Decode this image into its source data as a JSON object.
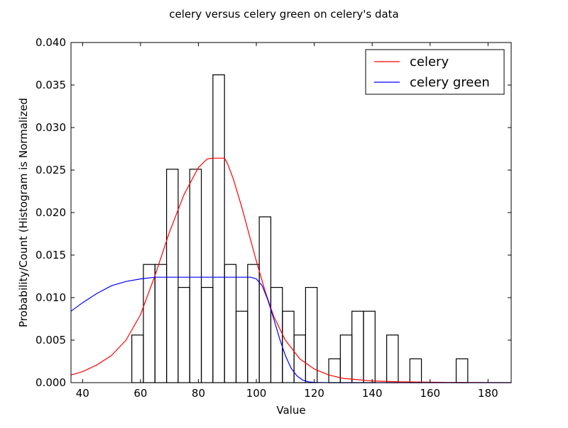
{
  "chart_data": {
    "type": "histogram+line",
    "title": "celery versus celery green on celery's data",
    "xlabel": "Value",
    "ylabel": "Probability/Count (Histogram is Normalized",
    "xlim": [
      36,
      188
    ],
    "ylim": [
      0,
      0.04
    ],
    "x_ticks": [
      "40",
      "60",
      "80",
      "100",
      "120",
      "140",
      "160",
      "180"
    ],
    "y_ticks": [
      "0.000",
      "0.005",
      "0.010",
      "0.015",
      "0.020",
      "0.025",
      "0.030",
      "0.035",
      "0.040"
    ],
    "grid": false,
    "legend_position": "top-right",
    "bin_width": 4,
    "histogram": [
      {
        "x0": 57,
        "value": 0.0056
      },
      {
        "x0": 61,
        "value": 0.0139
      },
      {
        "x0": 65,
        "value": 0.0139
      },
      {
        "x0": 69,
        "value": 0.0251
      },
      {
        "x0": 73,
        "value": 0.0112
      },
      {
        "x0": 77,
        "value": 0.0251
      },
      {
        "x0": 81,
        "value": 0.0112
      },
      {
        "x0": 85,
        "value": 0.0362
      },
      {
        "x0": 89,
        "value": 0.0139
      },
      {
        "x0": 93,
        "value": 0.0084
      },
      {
        "x0": 97,
        "value": 0.0139
      },
      {
        "x0": 101,
        "value": 0.0195
      },
      {
        "x0": 105,
        "value": 0.0112
      },
      {
        "x0": 109,
        "value": 0.0084
      },
      {
        "x0": 113,
        "value": 0.0056
      },
      {
        "x0": 117,
        "value": 0.0112
      },
      {
        "x0": 121,
        "value": 0.0
      },
      {
        "x0": 125,
        "value": 0.0028
      },
      {
        "x0": 129,
        "value": 0.0056
      },
      {
        "x0": 133,
        "value": 0.0084
      },
      {
        "x0": 137,
        "value": 0.0084
      },
      {
        "x0": 141,
        "value": 0.0
      },
      {
        "x0": 145,
        "value": 0.0056
      },
      {
        "x0": 149,
        "value": 0.0
      },
      {
        "x0": 153,
        "value": 0.0028
      },
      {
        "x0": 157,
        "value": 0.0
      },
      {
        "x0": 161,
        "value": 0.0
      },
      {
        "x0": 165,
        "value": 0.0
      },
      {
        "x0": 169,
        "value": 0.0028
      }
    ],
    "series": [
      {
        "name": "celery",
        "color": "#ff0000",
        "x": [
          36,
          40,
          45,
          50,
          55,
          60,
          65,
          70,
          75,
          80,
          83,
          85,
          87,
          89,
          90,
          92,
          95,
          98,
          100,
          103,
          106,
          110,
          115,
          120,
          125,
          130,
          140,
          150,
          160,
          170,
          180,
          188
        ],
        "y": [
          0.0009,
          0.0013,
          0.0021,
          0.0032,
          0.005,
          0.008,
          0.0126,
          0.0177,
          0.0221,
          0.0253,
          0.0263,
          0.0264,
          0.0264,
          0.0264,
          0.0258,
          0.024,
          0.0206,
          0.0168,
          0.0143,
          0.0108,
          0.0078,
          0.005,
          0.0028,
          0.0016,
          0.0009,
          0.0005,
          0.0002,
          0.0001,
          5e-05,
          2e-05,
          1e-05,
          0.0
        ]
      },
      {
        "name": "celery green",
        "color": "#0000ff",
        "x": [
          36,
          40,
          45,
          50,
          55,
          60,
          65,
          70,
          75,
          80,
          85,
          90,
          95,
          98,
          100,
          102,
          104,
          106,
          108,
          110,
          112,
          114,
          116,
          118,
          120,
          125,
          130,
          140,
          150,
          160,
          170,
          180,
          188
        ],
        "y": [
          0.0084,
          0.0094,
          0.0105,
          0.0114,
          0.0119,
          0.0122,
          0.0124,
          0.0124,
          0.0124,
          0.0124,
          0.0124,
          0.0124,
          0.0124,
          0.0124,
          0.0122,
          0.0114,
          0.0097,
          0.0075,
          0.0052,
          0.0032,
          0.0017,
          0.0008,
          0.0003,
          0.0001,
          3e-05,
          0.0,
          0.0,
          0.0,
          0.0,
          0.0,
          0.0,
          0.0,
          0.0
        ]
      }
    ]
  }
}
